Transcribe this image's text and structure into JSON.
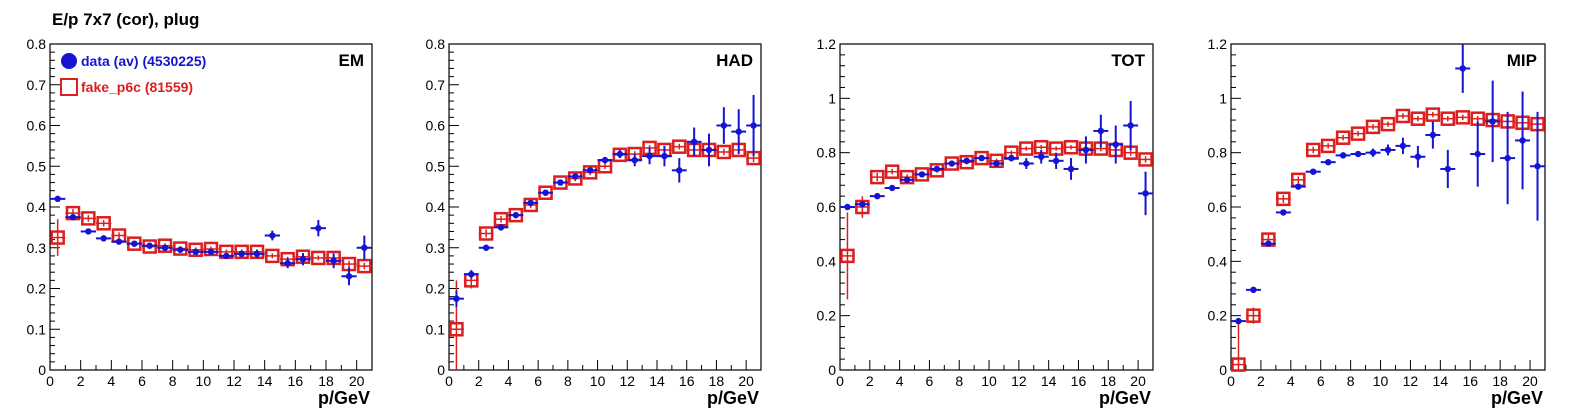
{
  "title": "E/p 7x7 (cor), plug",
  "colors": {
    "data": "#1414d2",
    "fake": "#dc1e1e",
    "axis": "#000000"
  },
  "legend": {
    "entries": [
      {
        "label": "data (av) (4530225)",
        "marker": "filled-circle",
        "color": "#1414d2"
      },
      {
        "label": "fake_p6c (81559)",
        "marker": "open-square",
        "color": "#dc1e1e"
      }
    ]
  },
  "chart_data": [
    {
      "type": "scatter",
      "tag": "EM",
      "xlabel": "p/GeV",
      "ylabel": "",
      "xlim": [
        0,
        21
      ],
      "ylim": [
        0,
        0.8
      ],
      "xticks": [
        "0",
        "2",
        "4",
        "6",
        "8",
        "10",
        "12",
        "14",
        "16",
        "18",
        "20"
      ],
      "yticks": [
        "0",
        "0.1",
        "0.2",
        "0.3",
        "0.4",
        "0.5",
        "0.6",
        "0.7",
        "0.8"
      ],
      "grid": false,
      "legend_position": "top-left",
      "series": [
        {
          "name": "data (av) (4530225)",
          "x": [
            0.5,
            1.5,
            2.5,
            3.5,
            4.5,
            5.5,
            6.5,
            7.5,
            8.5,
            9.5,
            10.5,
            11.5,
            12.5,
            13.5,
            14.5,
            15.5,
            16.5,
            17.5,
            18.5,
            19.5,
            20.5
          ],
          "y": [
            0.42,
            0.375,
            0.34,
            0.323,
            0.315,
            0.31,
            0.305,
            0.3,
            0.295,
            0.29,
            0.29,
            0.28,
            0.285,
            0.285,
            0.33,
            0.262,
            0.272,
            0.348,
            0.268,
            0.23,
            0.3
          ],
          "yerr": [
            0.005,
            0.005,
            0.005,
            0.005,
            0.005,
            0.005,
            0.005,
            0.005,
            0.005,
            0.005,
            0.006,
            0.007,
            0.008,
            0.01,
            0.012,
            0.012,
            0.015,
            0.02,
            0.018,
            0.022,
            0.03
          ]
        },
        {
          "name": "fake_p6c (81559)",
          "x": [
            0.5,
            1.5,
            2.5,
            3.5,
            4.5,
            5.5,
            6.5,
            7.5,
            8.5,
            9.5,
            10.5,
            11.5,
            12.5,
            13.5,
            14.5,
            15.5,
            16.5,
            17.5,
            18.5,
            19.5,
            20.5
          ],
          "y": [
            0.325,
            0.385,
            0.372,
            0.36,
            0.33,
            0.31,
            0.303,
            0.305,
            0.298,
            0.295,
            0.297,
            0.29,
            0.29,
            0.29,
            0.28,
            0.272,
            0.278,
            0.275,
            0.275,
            0.26,
            0.255
          ],
          "yerr": [
            0.045,
            0.01,
            0.008,
            0.008,
            0.008,
            0.007,
            0.006,
            0.006,
            0.006,
            0.006,
            0.006,
            0.006,
            0.006,
            0.006,
            0.006,
            0.006,
            0.006,
            0.006,
            0.006,
            0.008,
            0.008
          ]
        }
      ]
    },
    {
      "type": "scatter",
      "tag": "HAD",
      "xlabel": "p/GeV",
      "ylabel": "",
      "xlim": [
        0,
        21
      ],
      "ylim": [
        0,
        0.8
      ],
      "xticks": [
        "0",
        "2",
        "4",
        "6",
        "8",
        "10",
        "12",
        "14",
        "16",
        "18",
        "20"
      ],
      "yticks": [
        "0",
        "0.1",
        "0.2",
        "0.3",
        "0.4",
        "0.5",
        "0.6",
        "0.7",
        "0.8"
      ],
      "grid": false,
      "series": [
        {
          "name": "data (av) (4530225)",
          "x": [
            0.5,
            1.5,
            2.5,
            3.5,
            4.5,
            5.5,
            6.5,
            7.5,
            8.5,
            9.5,
            10.5,
            11.5,
            12.5,
            13.5,
            14.5,
            15.5,
            16.5,
            17.5,
            18.5,
            19.5,
            20.5
          ],
          "y": [
            0.175,
            0.235,
            0.3,
            0.35,
            0.38,
            0.41,
            0.435,
            0.46,
            0.475,
            0.49,
            0.515,
            0.53,
            0.515,
            0.525,
            0.525,
            0.49,
            0.56,
            0.54,
            0.6,
            0.585,
            0.6
          ],
          "yerr": [
            0.02,
            0.01,
            0.005,
            0.005,
            0.005,
            0.005,
            0.005,
            0.005,
            0.006,
            0.006,
            0.008,
            0.01,
            0.015,
            0.02,
            0.025,
            0.03,
            0.035,
            0.04,
            0.045,
            0.055,
            0.075
          ]
        },
        {
          "name": "fake_p6c (81559)",
          "x": [
            0.5,
            1.5,
            2.5,
            3.5,
            4.5,
            5.5,
            6.5,
            7.5,
            8.5,
            9.5,
            10.5,
            11.5,
            12.5,
            13.5,
            14.5,
            15.5,
            16.5,
            17.5,
            18.5,
            19.5,
            20.5
          ],
          "y": [
            0.1,
            0.22,
            0.335,
            0.37,
            0.38,
            0.405,
            0.435,
            0.46,
            0.47,
            0.485,
            0.5,
            0.528,
            0.53,
            0.545,
            0.54,
            0.548,
            0.54,
            0.54,
            0.535,
            0.54,
            0.52
          ],
          "yerr": [
            0.12,
            0.02,
            0.01,
            0.008,
            0.008,
            0.008,
            0.007,
            0.007,
            0.007,
            0.007,
            0.007,
            0.007,
            0.007,
            0.007,
            0.007,
            0.007,
            0.007,
            0.008,
            0.008,
            0.01,
            0.01
          ]
        }
      ]
    },
    {
      "type": "scatter",
      "tag": "TOT",
      "xlabel": "p/GeV",
      "ylabel": "",
      "xlim": [
        0,
        21
      ],
      "ylim": [
        0,
        1.2
      ],
      "xticks": [
        "0",
        "2",
        "4",
        "6",
        "8",
        "10",
        "12",
        "14",
        "16",
        "18",
        "20"
      ],
      "yticks": [
        "0",
        "0.2",
        "0.4",
        "0.6",
        "0.8",
        "1",
        "1.2"
      ],
      "grid": false,
      "series": [
        {
          "name": "data (av) (4530225)",
          "x": [
            0.5,
            1.5,
            2.5,
            3.5,
            4.5,
            5.5,
            6.5,
            7.5,
            8.5,
            9.5,
            10.5,
            11.5,
            12.5,
            13.5,
            14.5,
            15.5,
            16.5,
            17.5,
            18.5,
            19.5,
            20.5
          ],
          "y": [
            0.6,
            0.61,
            0.64,
            0.67,
            0.7,
            0.72,
            0.74,
            0.76,
            0.77,
            0.78,
            0.76,
            0.78,
            0.76,
            0.785,
            0.77,
            0.74,
            0.81,
            0.88,
            0.83,
            0.9,
            0.65
          ],
          "yerr": [
            0.01,
            0.008,
            0.005,
            0.005,
            0.005,
            0.005,
            0.005,
            0.006,
            0.006,
            0.007,
            0.01,
            0.012,
            0.02,
            0.025,
            0.03,
            0.04,
            0.05,
            0.06,
            0.07,
            0.09,
            0.08
          ]
        },
        {
          "name": "fake_p6c (81559)",
          "x": [
            0.5,
            1.5,
            2.5,
            3.5,
            4.5,
            5.5,
            6.5,
            7.5,
            8.5,
            9.5,
            10.5,
            11.5,
            12.5,
            13.5,
            14.5,
            15.5,
            16.5,
            17.5,
            18.5,
            19.5,
            20.5
          ],
          "y": [
            0.42,
            0.6,
            0.71,
            0.73,
            0.71,
            0.72,
            0.735,
            0.76,
            0.765,
            0.78,
            0.77,
            0.8,
            0.815,
            0.82,
            0.815,
            0.82,
            0.815,
            0.815,
            0.81,
            0.8,
            0.775
          ],
          "yerr": [
            0.16,
            0.04,
            0.015,
            0.01,
            0.01,
            0.01,
            0.008,
            0.008,
            0.008,
            0.008,
            0.008,
            0.008,
            0.008,
            0.008,
            0.008,
            0.008,
            0.008,
            0.01,
            0.01,
            0.012,
            0.012
          ]
        }
      ]
    },
    {
      "type": "scatter",
      "tag": "MIP",
      "xlabel": "p/GeV",
      "ylabel": "",
      "xlim": [
        0,
        21
      ],
      "ylim": [
        0,
        1.2
      ],
      "xticks": [
        "0",
        "2",
        "4",
        "6",
        "8",
        "10",
        "12",
        "14",
        "16",
        "18",
        "20"
      ],
      "yticks": [
        "0",
        "0.2",
        "0.4",
        "0.6",
        "0.8",
        "1",
        "1.2"
      ],
      "grid": false,
      "series": [
        {
          "name": "data (av) (4530225)",
          "x": [
            0.5,
            1.5,
            2.5,
            3.5,
            4.5,
            5.5,
            6.5,
            7.5,
            8.5,
            9.5,
            10.5,
            11.5,
            12.5,
            13.5,
            14.5,
            15.5,
            16.5,
            17.5,
            18.5,
            19.5,
            20.5
          ],
          "y": [
            0.18,
            0.295,
            0.465,
            0.58,
            0.675,
            0.73,
            0.765,
            0.79,
            0.795,
            0.8,
            0.81,
            0.825,
            0.785,
            0.865,
            0.74,
            1.11,
            0.795,
            0.915,
            0.78,
            0.845,
            0.75
          ],
          "yerr": [
            0.008,
            0.006,
            0.006,
            0.006,
            0.006,
            0.006,
            0.007,
            0.008,
            0.01,
            0.015,
            0.02,
            0.03,
            0.04,
            0.05,
            0.07,
            0.09,
            0.12,
            0.15,
            0.17,
            0.18,
            0.2
          ]
        },
        {
          "name": "fake_p6c (81559)",
          "x": [
            0.5,
            1.5,
            2.5,
            3.5,
            4.5,
            5.5,
            6.5,
            7.5,
            8.5,
            9.5,
            10.5,
            11.5,
            12.5,
            13.5,
            14.5,
            15.5,
            16.5,
            17.5,
            18.5,
            19.5,
            20.5
          ],
          "y": [
            0.02,
            0.2,
            0.48,
            0.63,
            0.7,
            0.81,
            0.825,
            0.855,
            0.87,
            0.895,
            0.905,
            0.935,
            0.925,
            0.94,
            0.925,
            0.93,
            0.925,
            0.92,
            0.915,
            0.91,
            0.905
          ],
          "yerr": [
            0.15,
            0.03,
            0.02,
            0.015,
            0.012,
            0.012,
            0.01,
            0.01,
            0.01,
            0.01,
            0.01,
            0.01,
            0.01,
            0.01,
            0.01,
            0.01,
            0.01,
            0.01,
            0.01,
            0.012,
            0.012
          ]
        }
      ]
    }
  ]
}
